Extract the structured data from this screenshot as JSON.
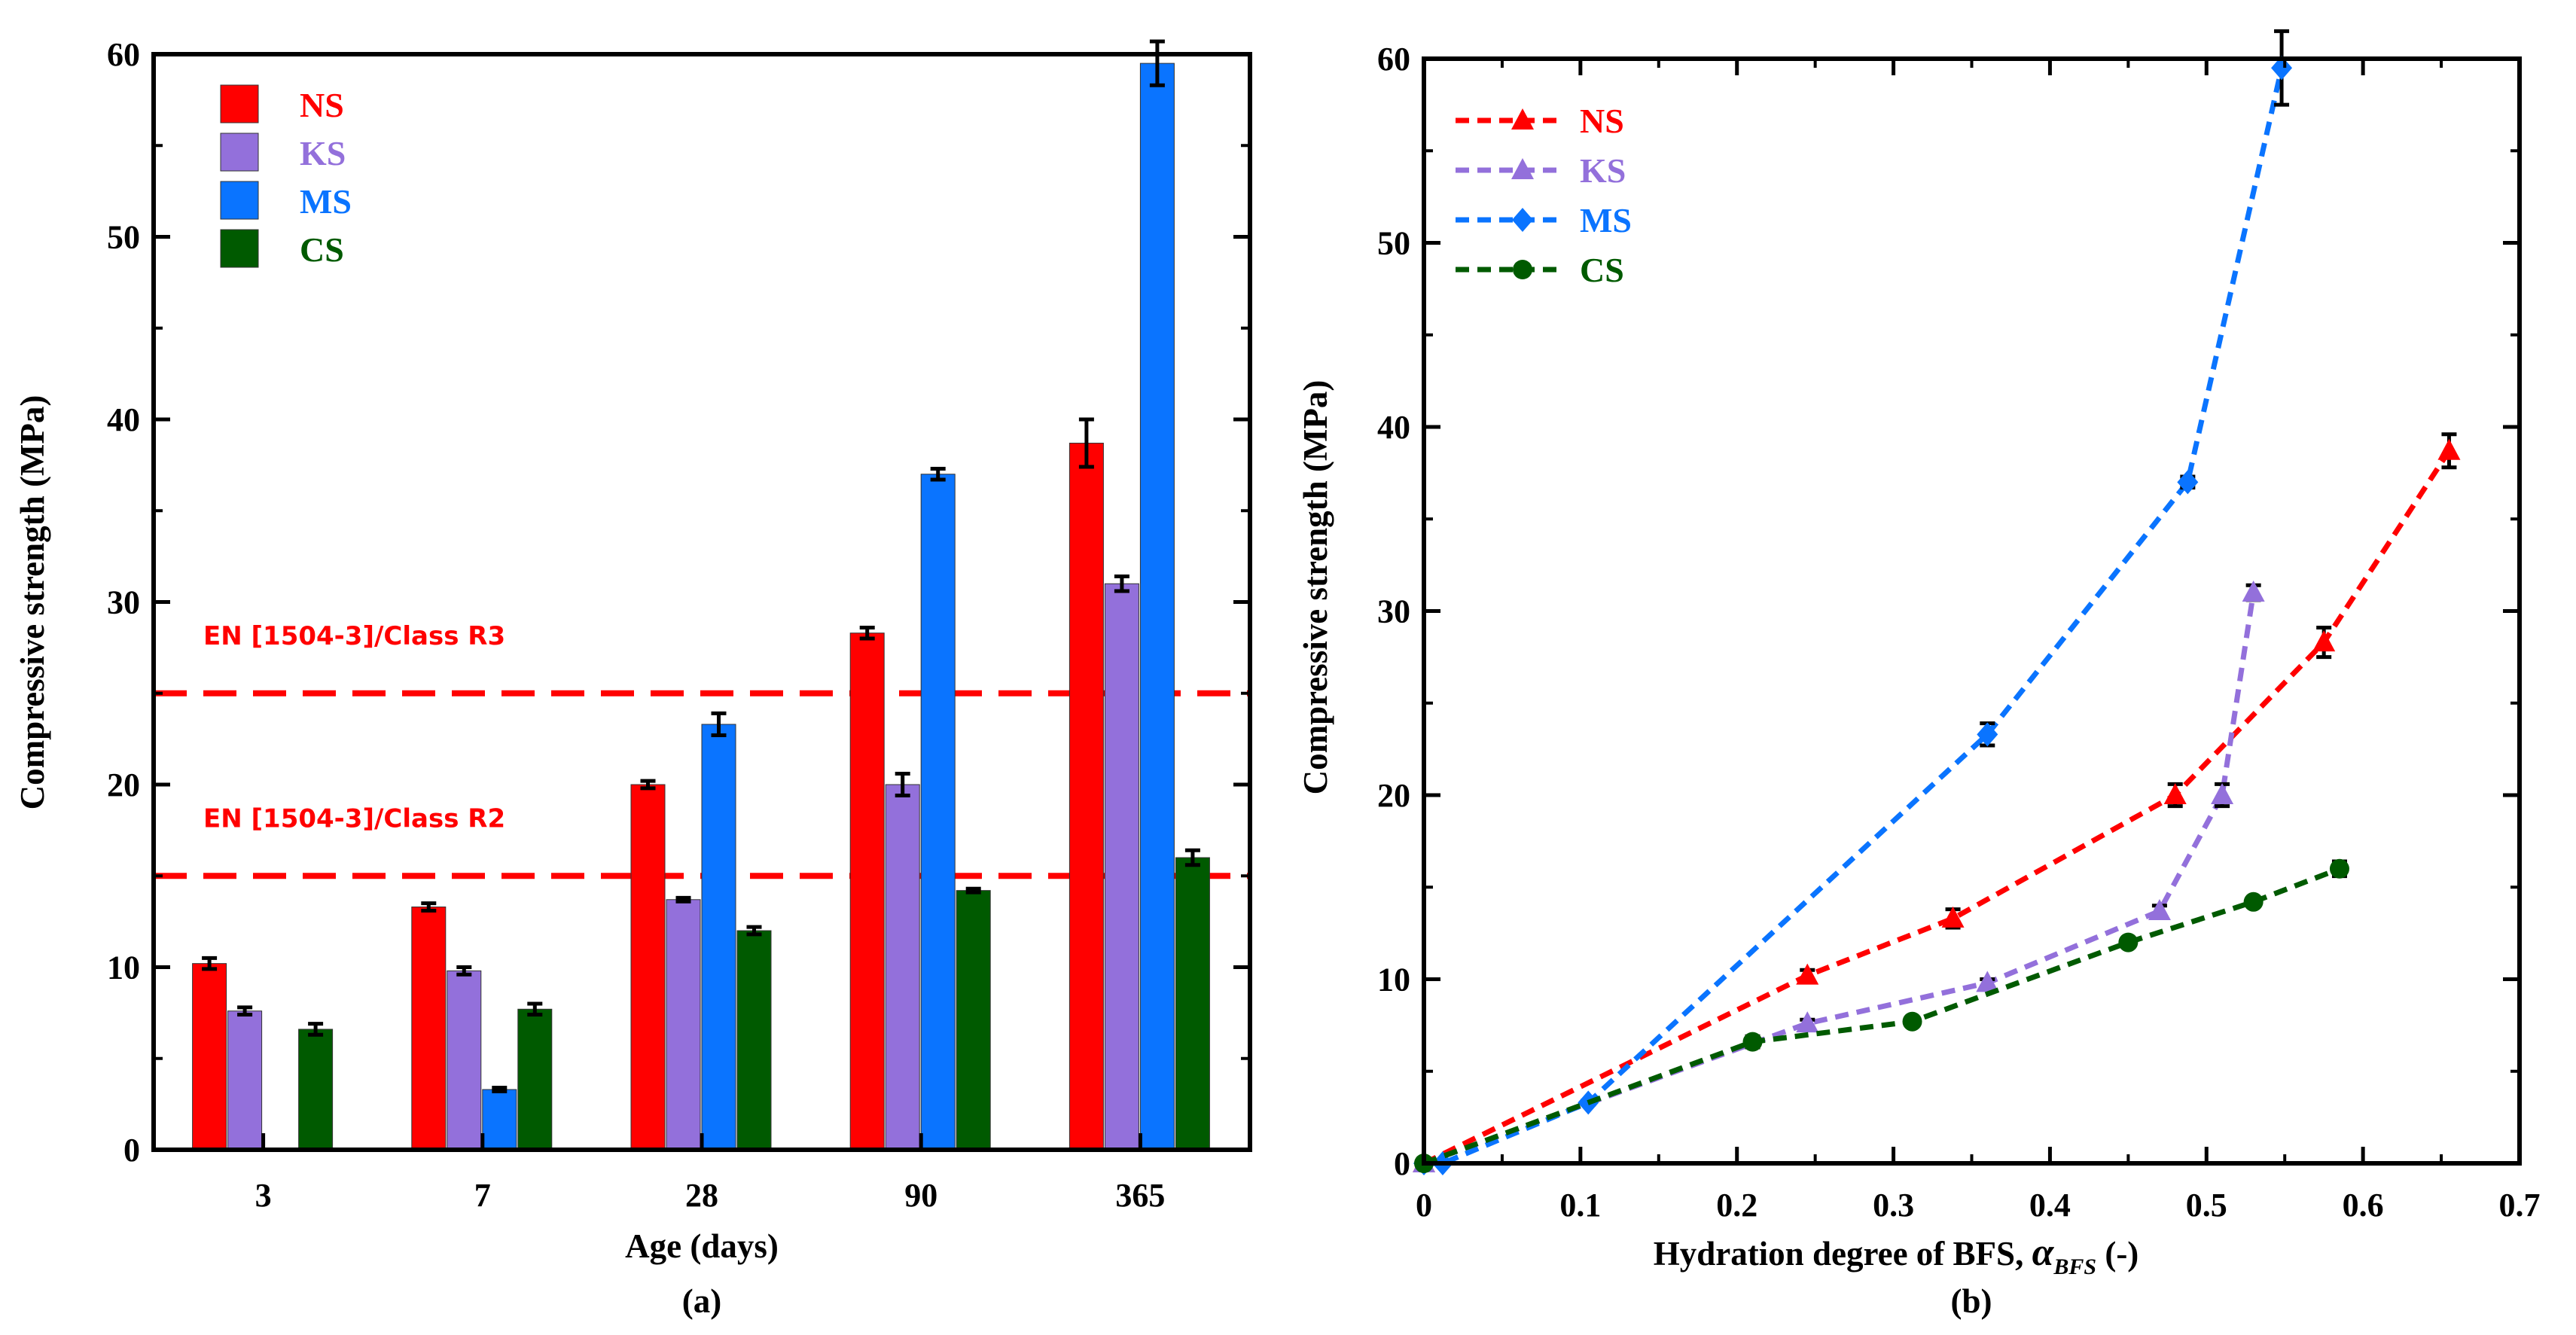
{
  "chart_data": [
    {
      "type": "bar",
      "panel_caption": "(a)",
      "xlabel": "Age (days)",
      "ylabel": "Compressive strength (MPa)",
      "ylim": [
        0,
        60
      ],
      "yticks": [
        "0",
        "10",
        "20",
        "30",
        "40",
        "50",
        "60"
      ],
      "categories": [
        "3",
        "7",
        "28",
        "90",
        "365"
      ],
      "legend_position": "top-left",
      "series": [
        {
          "name": "NS",
          "color": "#ff0000",
          "values": [
            10.2,
            13.3,
            20.0,
            28.3,
            38.7
          ],
          "errors": [
            0.3,
            0.2,
            0.2,
            0.3,
            1.3
          ]
        },
        {
          "name": "KS",
          "color": "#9370db",
          "values": [
            7.6,
            9.8,
            13.7,
            20.0,
            31.0
          ],
          "errors": [
            0.2,
            0.2,
            0.1,
            0.6,
            0.4
          ]
        },
        {
          "name": "MS",
          "color": "#0a74ff",
          "values": [
            null,
            3.3,
            23.3,
            37.0,
            59.5
          ],
          "errors": [
            0,
            0.1,
            0.6,
            0.3,
            1.2
          ]
        },
        {
          "name": "CS",
          "color": "#005a00",
          "values": [
            6.6,
            7.7,
            12.0,
            14.2,
            16.0
          ],
          "errors": [
            0.3,
            0.3,
            0.2,
            0.1,
            0.4
          ]
        }
      ],
      "reference_lines": [
        {
          "label": "EN [1504-3]/Class R3",
          "value": 25,
          "color": "#ff0000"
        },
        {
          "label": "EN [1504-3]/Class R2",
          "value": 15,
          "color": "#ff0000"
        }
      ]
    },
    {
      "type": "line",
      "panel_caption": "(b)",
      "xlabel_main": "Hydration degree of BFS, ",
      "xlabel_symbol": "α",
      "xlabel_sub": "BFS",
      "xlabel_tail": " (-)",
      "ylabel": "Compressive strength (MPa)",
      "xlim": [
        0,
        0.7
      ],
      "ylim": [
        0,
        60
      ],
      "xticks": [
        "0",
        "0.1",
        "0.2",
        "0.3",
        "0.4",
        "0.5",
        "0.6",
        "0.7"
      ],
      "yticks": [
        "0",
        "10",
        "20",
        "30",
        "40",
        "50",
        "60"
      ],
      "legend_position": "top-left",
      "series": [
        {
          "name": "NS",
          "color": "#ff0000",
          "marker": "triangle",
          "x": [
            0,
            0.245,
            0.338,
            0.48,
            0.575,
            0.655
          ],
          "y": [
            0,
            10.2,
            13.3,
            20.0,
            28.3,
            38.7
          ],
          "errors": [
            0,
            0.3,
            0.5,
            0.6,
            0.8,
            0.9
          ]
        },
        {
          "name": "KS",
          "color": "#9370db",
          "marker": "triangle",
          "x": [
            0,
            0.245,
            0.36,
            0.47,
            0.51,
            0.53
          ],
          "y": [
            0,
            7.6,
            9.8,
            13.7,
            20.0,
            31.0
          ],
          "errors": [
            0,
            0.2,
            0.2,
            0.3,
            0.6,
            0.4
          ]
        },
        {
          "name": "MS",
          "color": "#0a74ff",
          "marker": "diamond",
          "x": [
            0,
            0.012,
            0.105,
            0.36,
            0.488,
            0.548
          ],
          "y": [
            0,
            0,
            3.3,
            23.3,
            37.0,
            59.5
          ],
          "errors": [
            0,
            0,
            0.1,
            0.6,
            0.3,
            2.0
          ]
        },
        {
          "name": "CS",
          "color": "#005a00",
          "marker": "circle",
          "x": [
            0,
            0.21,
            0.312,
            0.45,
            0.53,
            0.585
          ],
          "y": [
            0,
            6.6,
            7.7,
            12.0,
            14.2,
            16.0
          ],
          "errors": [
            0,
            0.3,
            0.2,
            0.2,
            0.1,
            0.4
          ]
        }
      ]
    }
  ]
}
